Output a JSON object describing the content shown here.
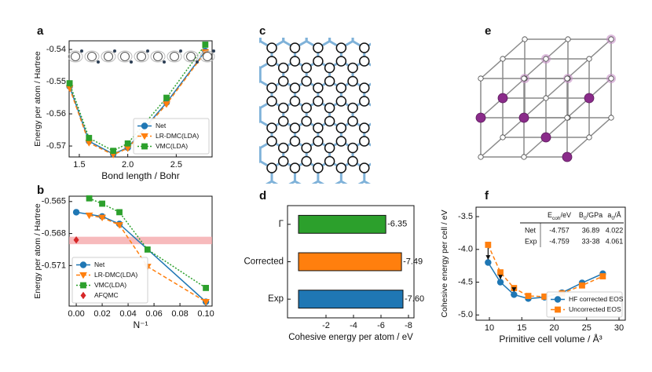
{
  "chart_data": [
    {
      "label": "a",
      "type": "line",
      "xlabel": "Bond length / Bohr",
      "ylabel": "Energy per atom / Hartree",
      "x": [
        1.4,
        1.6,
        1.85,
        2.0,
        2.4,
        2.8
      ],
      "xlim": [
        1.395,
        2.87
      ],
      "xticks": [
        1.5,
        {
          "value": 2.0,
          "label": "2.0"
        },
        2.5
      ],
      "ylim": [
        -0.5734,
        -0.5373
      ],
      "yticks": [
        -0.57,
        -0.56,
        -0.55,
        -0.54
      ],
      "legend": "lower right",
      "series": [
        {
          "name": "Net",
          "color": "#1f77b4",
          "marker": "circle",
          "dash": "none",
          "values": [
            -0.5515,
            -0.5685,
            -0.5725,
            -0.5705,
            -0.5565,
            -0.5405
          ]
        },
        {
          "name": "LR-DMC(LDA)",
          "color": "#ff7f0e",
          "marker": "triangle",
          "dash": "5,3",
          "values": [
            -0.552,
            -0.569,
            -0.5727,
            -0.5707,
            -0.557,
            -0.5408
          ]
        },
        {
          "name": "VMC(LDA)",
          "color": "#2ca02c",
          "marker": "square",
          "dash": "2,2",
          "values": [
            -0.5505,
            -0.5675,
            -0.5715,
            -0.5692,
            -0.555,
            -0.5385
          ]
        }
      ]
    },
    {
      "label": "b",
      "type": "line",
      "xlabel": "N⁻¹",
      "ylabel": "Energy per atom / Hartree",
      "xlim": [
        -0.0055,
        0.1048
      ],
      "xticks": [
        {
          "value": 0,
          "label": "0.00"
        },
        0.02,
        0.04,
        0.06,
        0.08,
        {
          "value": 0.1,
          "label": "0.10"
        }
      ],
      "ylim": [
        -0.5748,
        -0.5645
      ],
      "yticks": [
        -0.565,
        -0.568,
        -0.571
      ],
      "band": [
        -0.569,
        -0.5683
      ],
      "band_color": "#f4a3a6",
      "legend": "lower left",
      "series": [
        {
          "name": "Net",
          "color": "#1f77b4",
          "marker": "circle",
          "dash": "none",
          "x": [
            0,
            0.02,
            0.0333,
            0.1
          ],
          "values": [
            -0.566,
            -0.5664,
            -0.5671,
            -0.5744
          ]
        },
        {
          "name": "LR-DMC(LDA)",
          "color": "#ff7f0e",
          "marker": "triangle",
          "dash": "5,3",
          "x": [
            0.01,
            0.02,
            0.0333,
            0.055,
            0.1
          ],
          "values": [
            -0.5663,
            -0.5665,
            -0.5672,
            -0.5711,
            -0.5744
          ]
        },
        {
          "name": "VMC(LDA)",
          "color": "#2ca02c",
          "marker": "square",
          "dash": "2,2",
          "x": [
            0.01,
            0.02,
            0.0333,
            0.055,
            0.1
          ],
          "values": [
            -0.5647,
            -0.5652,
            -0.566,
            -0.5695,
            -0.5731
          ]
        },
        {
          "name": "AFQMC",
          "color": "#d62728",
          "marker": "diamond",
          "dash": "none",
          "line": false,
          "x": [
            0
          ],
          "values": [
            -0.5686
          ],
          "errors": [
            0.0002
          ]
        }
      ]
    },
    {
      "label": "c",
      "type": "diagram"
    },
    {
      "label": "d",
      "type": "barh",
      "xlabel": "Cohesive energy per atom / eV",
      "categories": [
        "Γ",
        "Corrected",
        "Exp"
      ],
      "values": [
        -6.35,
        -7.49,
        -7.6
      ],
      "value_labels": [
        "-6.35",
        "-7.49",
        "-7.60"
      ],
      "colors": [
        "#2ca02c",
        "#ff7f0e",
        "#1f77b4"
      ],
      "xlim": [
        0.8,
        -8.4
      ],
      "xticks": [
        -2,
        -4,
        -6,
        -8
      ]
    },
    {
      "label": "e",
      "type": "diagram"
    },
    {
      "label": "f",
      "type": "line",
      "xlabel": "Primitive cell volume / Å³",
      "ylabel": "Cohesive energy per cell / eV",
      "xlim": [
        7.94,
        30.97
      ],
      "xticks": [
        10,
        15,
        20,
        25,
        30
      ],
      "ylim": [
        -5.08,
        -3.356
      ],
      "yticks": [
        -3.5,
        {
          "value": -4.0,
          "label": "-4.0"
        },
        -4.5,
        {
          "value": -5.0,
          "label": "-5.0"
        }
      ],
      "legend": "lower right",
      "series": [
        {
          "name": "HF corrected EOS",
          "color": "#1f77b4",
          "marker": "circle",
          "dash": "none",
          "x": [
            9.8,
            11.7,
            13.8,
            16,
            18.5,
            21.2,
            24.3,
            27.5
          ],
          "values": [
            -4.2,
            -4.5,
            -4.69,
            -4.75,
            -4.73,
            -4.66,
            -4.51,
            -4.37
          ]
        },
        {
          "name": "Uncorrected  EOS",
          "color": "#ff7f0e",
          "marker": "square",
          "dash": "5,3",
          "x": [
            9.8,
            11.7,
            13.8,
            16,
            18.5,
            21.2,
            24.3,
            27.5
          ],
          "values": [
            -3.93,
            -4.35,
            -4.59,
            -4.71,
            -4.72,
            -4.67,
            -4.55,
            -4.41
          ]
        }
      ],
      "table": {
        "columns": [
          {
            "main": "E",
            "sub": "coh",
            "unit": "/eV"
          },
          {
            "main": "B",
            "sub": "0",
            "unit": "/GPa"
          },
          {
            "main": "a",
            "sub": "0",
            "unit": "/Å"
          }
        ],
        "rows": [
          [
            "Net",
            "-4.757",
            "36.89",
            "4.022"
          ],
          [
            "Exp",
            "-4.759",
            "33-38",
            "4.061"
          ]
        ]
      }
    }
  ]
}
